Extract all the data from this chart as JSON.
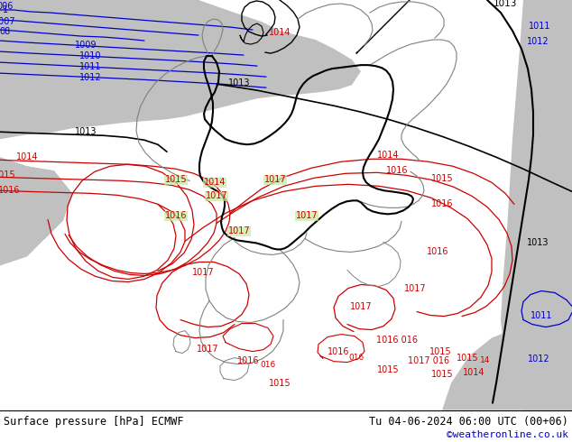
{
  "title_left": "Surface pressure [hPa] ECMWF",
  "title_right": "Tu 04-06-2024 06:00 UTC (00+06)",
  "credit": "©weatheronline.co.uk",
  "bg_map_color": "#c8e8a0",
  "sea_color": "#c0c0c0",
  "bottom_bg": "#ffffff",
  "red": "#cc0000",
  "blue": "#0000cc",
  "black": "#000000",
  "gray_border": "#808080",
  "credit_color": "#0000cc",
  "figsize": [
    6.34,
    4.9
  ],
  "dpi": 100
}
